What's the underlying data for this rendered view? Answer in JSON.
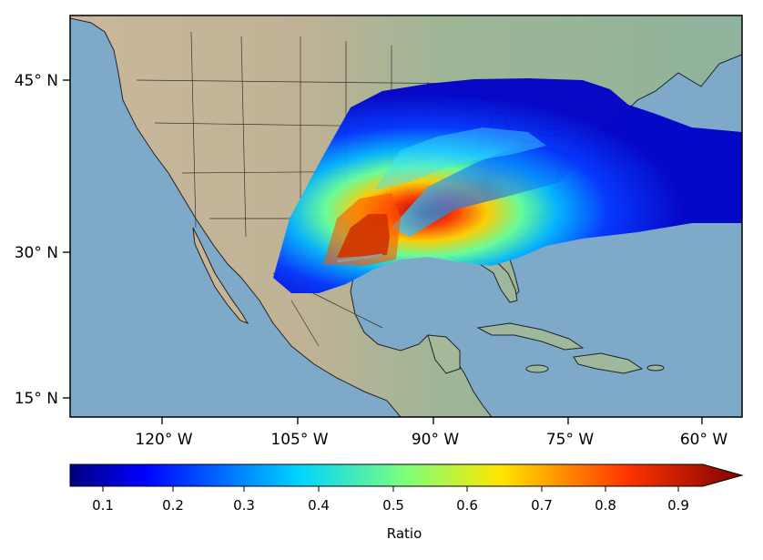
{
  "map": {
    "lat_ticks": [
      "45° N",
      "30° N",
      "15° N"
    ],
    "lon_ticks": [
      "120° W",
      "105° W",
      "90° W",
      "75° W",
      "60° W"
    ],
    "colors": {
      "ocean": "#7fa9c9",
      "land_west": "#c9b79c",
      "land_east": "#93b49a",
      "border": "#111111"
    }
  },
  "colorbar": {
    "label": "Ratio",
    "ticks": [
      "0.1",
      "0.2",
      "0.3",
      "0.4",
      "0.5",
      "0.6",
      "0.7",
      "0.8",
      "0.9"
    ],
    "colormap": "jet",
    "extend": "max"
  }
}
